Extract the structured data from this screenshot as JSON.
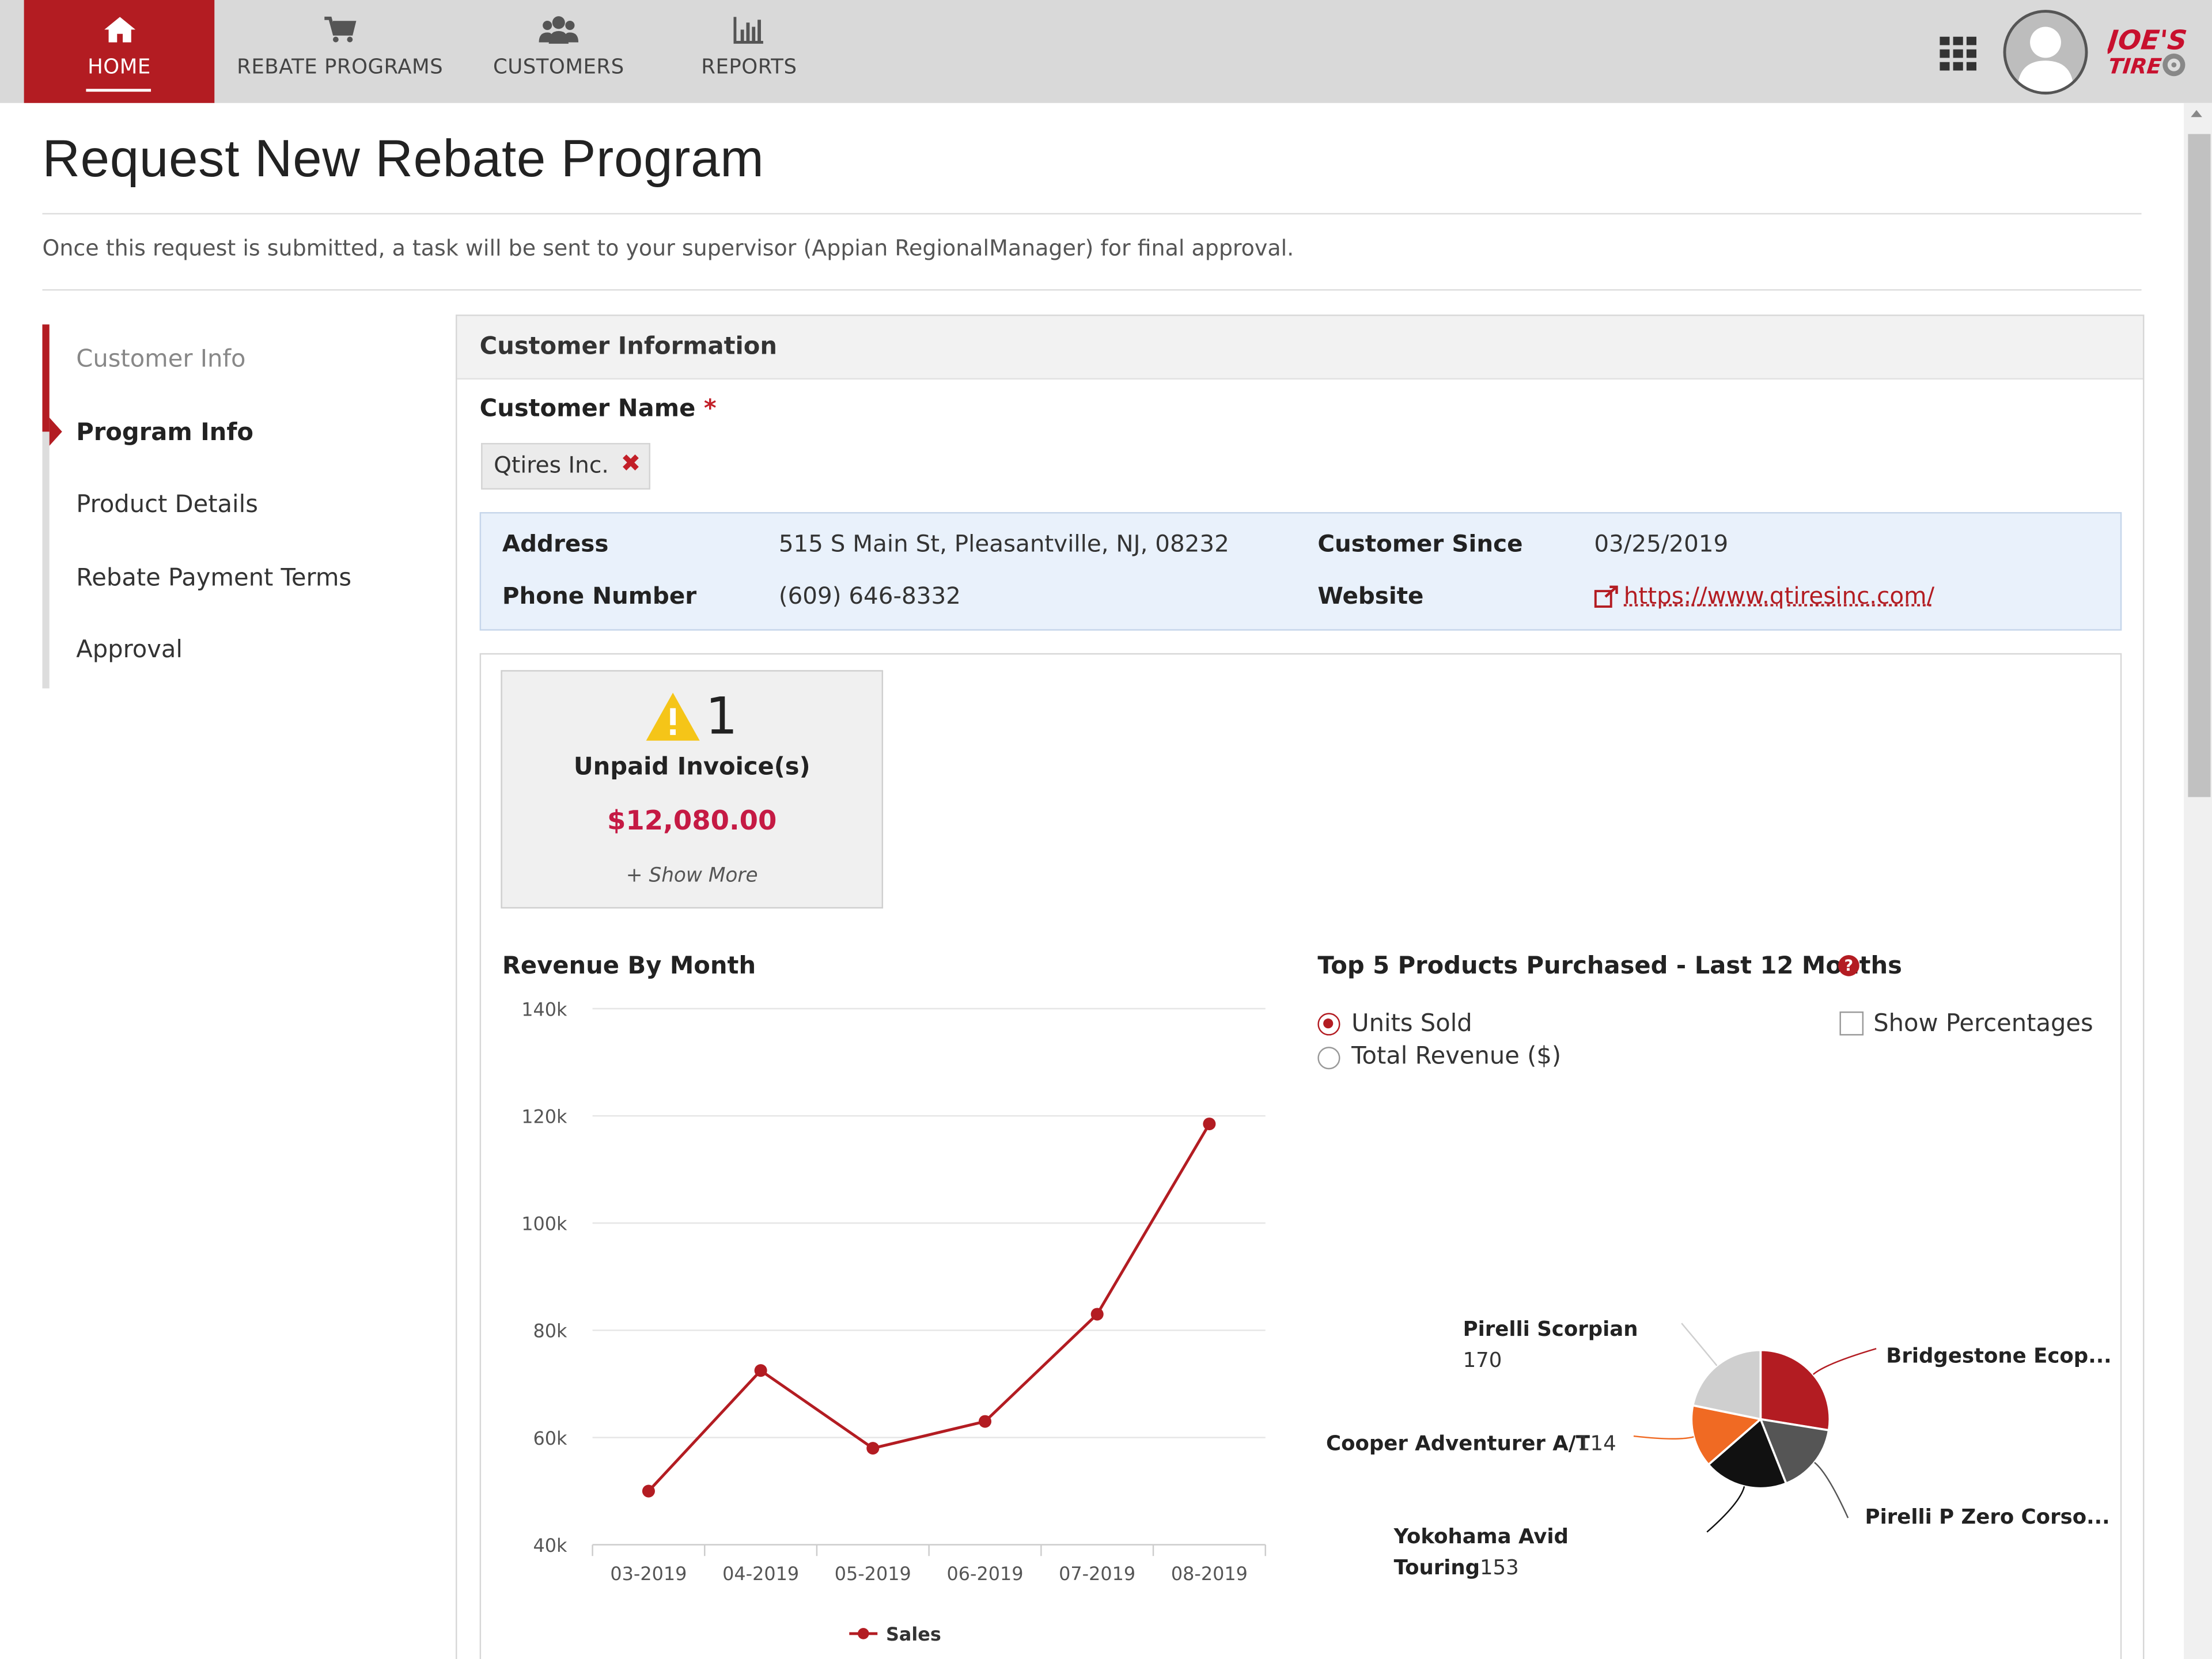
{
  "nav": {
    "tabs": [
      {
        "label": "HOME",
        "icon": "home-icon",
        "active": true
      },
      {
        "label": "REBATE PROGRAMS",
        "icon": "cart-icon",
        "active": false
      },
      {
        "label": "CUSTOMERS",
        "icon": "users-icon",
        "active": false
      },
      {
        "label": "REPORTS",
        "icon": "bar-chart-icon",
        "active": false
      }
    ],
    "logo_text": "JOE'S TIRE",
    "accent_color": "#b31c22"
  },
  "page": {
    "title": "Request New Rebate Program",
    "description": "Once this request is submitted, a task will be sent to your supervisor (Appian RegionalManager) for final approval."
  },
  "steps": [
    {
      "label": "Customer Info",
      "state": "done"
    },
    {
      "label": "Program Info",
      "state": "current"
    },
    {
      "label": "Product Details",
      "state": "todo"
    },
    {
      "label": "Rebate Payment Terms",
      "state": "todo"
    },
    {
      "label": "Approval",
      "state": "todo"
    }
  ],
  "panel": {
    "title": "Customer Information",
    "customer_name_label": "Customer Name",
    "required_mark": "*",
    "customer_name_value": "Qtires Inc.",
    "remove_glyph": "✖"
  },
  "info": {
    "address_label": "Address",
    "address_value": "515 S Main St, Pleasantville, NJ, 08232",
    "phone_label": "Phone Number",
    "phone_value": "(609) 646-8332",
    "since_label": "Customer Since",
    "since_value": "03/25/2019",
    "website_label": "Website",
    "website_value": "https://www.qtiresinc.com/"
  },
  "alert": {
    "count": "1",
    "label": "Unpaid Invoice(s)",
    "amount": "$12,080.00",
    "more": "+ Show More"
  },
  "revenue_chart": {
    "title": "Revenue By Month",
    "legend": "Sales"
  },
  "products_chart": {
    "title": "Top 5 Products Purchased - Last 12 Months",
    "options": [
      {
        "label": "Units Sold",
        "selected": true
      },
      {
        "label": "Total Revenue ($)",
        "selected": false
      }
    ],
    "show_percentages_label": "Show Percentages",
    "show_percentages_checked": false
  },
  "chart_data": [
    {
      "type": "line",
      "title": "Revenue By Month",
      "categories": [
        "03-2019",
        "04-2019",
        "05-2019",
        "06-2019",
        "07-2019",
        "08-2019"
      ],
      "series": [
        {
          "name": "Sales",
          "values": [
            50000,
            72500,
            58000,
            63000,
            83000,
            118500
          ],
          "color": "#b31c22"
        }
      ],
      "ylim": [
        40000,
        140000
      ],
      "yticks": [
        40000,
        60000,
        80000,
        100000,
        120000,
        140000
      ],
      "ytick_labels": [
        "40k",
        "60k",
        "80k",
        "100k",
        "120k",
        "140k"
      ],
      "grid": true,
      "legend_position": "bottom"
    },
    {
      "type": "pie",
      "title": "Top 5 Products Purchased - Last 12 Months",
      "slices": [
        {
          "label": "Bridgestone Ecop...",
          "value": 215,
          "color": "#b31c22"
        },
        {
          "label": "Pirelli P Zero Corso...",
          "value": 128,
          "color": "#555555"
        },
        {
          "label": "Yokohama Avid Touring",
          "value": 153,
          "color": "#111111"
        },
        {
          "label": "Cooper Adventurer A/T",
          "value": 114,
          "color": "#f06a23"
        },
        {
          "label": "Pirelli Scorpian",
          "value": 170,
          "color": "#cfcfcf"
        }
      ],
      "shown_values": {
        "Pirelli Scorpian": "170",
        "Cooper Adventurer A/T": "114",
        "Yokohama Avid Touring": "153"
      }
    }
  ]
}
